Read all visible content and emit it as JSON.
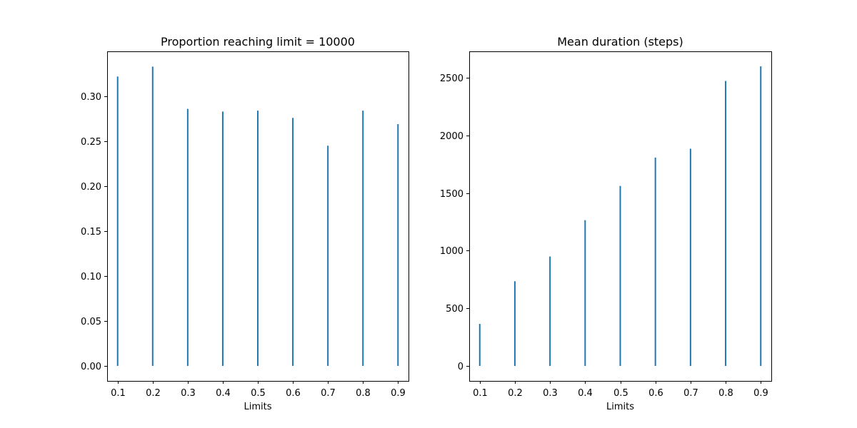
{
  "colors": {
    "bar": "#1f77b4",
    "axis": "#000000",
    "background": "#ffffff"
  },
  "chart_data": [
    {
      "type": "bar",
      "title": "Proportion reaching limit = 10000",
      "xlabel": "Limits",
      "ylabel": "",
      "categories": [
        "0.1",
        "0.2",
        "0.3",
        "0.4",
        "0.5",
        "0.6",
        "0.7",
        "0.8",
        "0.9"
      ],
      "x": [
        0.1,
        0.2,
        0.3,
        0.4,
        0.5,
        0.6,
        0.7,
        0.8,
        0.9
      ],
      "values": [
        0.322,
        0.333,
        0.286,
        0.283,
        0.284,
        0.276,
        0.245,
        0.284,
        0.269
      ],
      "xlim": [
        0.07,
        0.93
      ],
      "ylim": [
        -0.0167,
        0.35
      ],
      "yticks": [
        0.0,
        0.05,
        0.1,
        0.15,
        0.2,
        0.25,
        0.3
      ],
      "ytick_labels": [
        "0.00",
        "0.05",
        "0.10",
        "0.15",
        "0.20",
        "0.25",
        "0.30"
      ],
      "xtick_labels": [
        "0.1",
        "0.2",
        "0.3",
        "0.4",
        "0.5",
        "0.6",
        "0.7",
        "0.8",
        "0.9"
      ],
      "grid": false,
      "legend": "none"
    },
    {
      "type": "bar",
      "title": "Mean duration (steps)",
      "xlabel": "Limits",
      "ylabel": "",
      "categories": [
        "0.1",
        "0.2",
        "0.3",
        "0.4",
        "0.5",
        "0.6",
        "0.7",
        "0.8",
        "0.9"
      ],
      "x": [
        0.1,
        0.2,
        0.3,
        0.4,
        0.5,
        0.6,
        0.7,
        0.8,
        0.9
      ],
      "values": [
        365,
        735,
        950,
        1265,
        1562,
        1808,
        1885,
        2473,
        2600
      ],
      "xlim": [
        0.07,
        0.93
      ],
      "ylim": [
        -130,
        2730
      ],
      "yticks": [
        0,
        500,
        1000,
        1500,
        2000,
        2500
      ],
      "ytick_labels": [
        "0",
        "500",
        "1000",
        "1500",
        "2000",
        "2500"
      ],
      "xtick_labels": [
        "0.1",
        "0.2",
        "0.3",
        "0.4",
        "0.5",
        "0.6",
        "0.7",
        "0.8",
        "0.9"
      ],
      "grid": false,
      "legend": "none"
    }
  ]
}
